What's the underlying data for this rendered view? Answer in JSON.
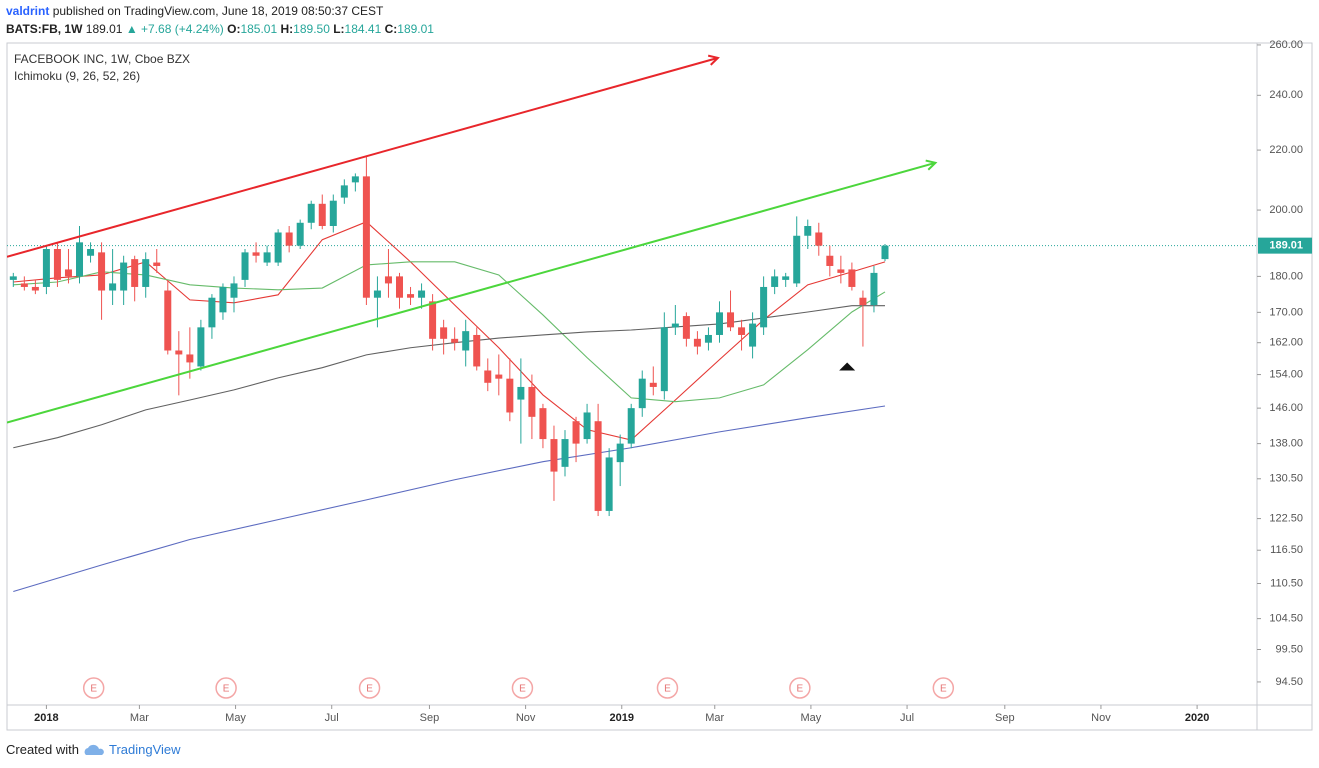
{
  "header": {
    "author": "valdrint",
    "published": "published on TradingView.com, June 18, 2019 08:50:37 CEST",
    "symbol": "BATS:FB, 1W",
    "last": "189.01",
    "change": "▲ +7.68 (+4.24%)",
    "ohlc": [
      {
        "label": "O:",
        "value": "185.01"
      },
      {
        "label": "H:",
        "value": "189.50"
      },
      {
        "label": "L:",
        "value": "184.41"
      },
      {
        "label": "C:",
        "value": "189.01"
      }
    ]
  },
  "footer": {
    "created": "Created with",
    "brand": "TradingView"
  },
  "chart_data": {
    "type": "candlestick",
    "title": "FACEBOOK INC, 1W, Cboe BZX",
    "subtitle": "Ichimoku (9, 26, 52, 26)",
    "log_scale": true,
    "up_color": "#26a69a",
    "down_color": "#ef5350",
    "xlim": [
      "2017-12-07",
      "2020-02-08"
    ],
    "xticks": [
      {
        "value": "2018-01-01",
        "label": "2018"
      },
      {
        "value": "2018-03-01",
        "label": "Mar"
      },
      {
        "value": "2018-05-01",
        "label": "May"
      },
      {
        "value": "2018-07-01",
        "label": "Jul"
      },
      {
        "value": "2018-09-01",
        "label": "Sep"
      },
      {
        "value": "2018-11-01",
        "label": "Nov"
      },
      {
        "value": "2019-01-01",
        "label": "2019"
      },
      {
        "value": "2019-03-01",
        "label": "Mar"
      },
      {
        "value": "2019-05-01",
        "label": "May"
      },
      {
        "value": "2019-07-01",
        "label": "Jul"
      },
      {
        "value": "2019-09-01",
        "label": "Sep"
      },
      {
        "value": "2019-11-01",
        "label": "Nov"
      },
      {
        "value": "2020-01-01",
        "label": "2020"
      }
    ],
    "ylim": [
      91.1,
      260.8
    ],
    "yticks": [
      {
        "value": 260,
        "label": "260.00"
      },
      {
        "value": 240,
        "label": "240.00"
      },
      {
        "value": 220,
        "label": "220.00"
      },
      {
        "value": 200,
        "label": "200.00"
      },
      {
        "value": 180,
        "label": "180.00"
      },
      {
        "value": 170,
        "label": "170.00"
      },
      {
        "value": 162,
        "label": "162.00"
      },
      {
        "value": 154,
        "label": "154.00"
      },
      {
        "value": 146,
        "label": "146.00"
      },
      {
        "value": 138,
        "label": "138.00"
      },
      {
        "value": 130.5,
        "label": "130.50"
      },
      {
        "value": 122.5,
        "label": "122.50"
      },
      {
        "value": 116.5,
        "label": "116.50"
      },
      {
        "value": 110.5,
        "label": "110.50"
      },
      {
        "value": 104.5,
        "label": "104.50"
      },
      {
        "value": 99.5,
        "label": "99.50"
      },
      {
        "value": 94.5,
        "label": "94.50"
      }
    ],
    "x": [
      "2017-12-11",
      "2017-12-18",
      "2017-12-25",
      "2018-01-01",
      "2018-01-08",
      "2018-01-15",
      "2018-01-22",
      "2018-01-29",
      "2018-02-05",
      "2018-02-12",
      "2018-02-19",
      "2018-02-26",
      "2018-03-05",
      "2018-03-12",
      "2018-03-19",
      "2018-03-26",
      "2018-04-02",
      "2018-04-09",
      "2018-04-16",
      "2018-04-23",
      "2018-04-30",
      "2018-05-07",
      "2018-05-14",
      "2018-05-21",
      "2018-05-28",
      "2018-06-04",
      "2018-06-11",
      "2018-06-18",
      "2018-06-25",
      "2018-07-02",
      "2018-07-09",
      "2018-07-16",
      "2018-07-23",
      "2018-07-30",
      "2018-08-06",
      "2018-08-13",
      "2018-08-20",
      "2018-08-27",
      "2018-09-03",
      "2018-09-10",
      "2018-09-17",
      "2018-09-24",
      "2018-10-01",
      "2018-10-08",
      "2018-10-15",
      "2018-10-22",
      "2018-10-29",
      "2018-11-05",
      "2018-11-12",
      "2018-11-19",
      "2018-11-26",
      "2018-12-03",
      "2018-12-10",
      "2018-12-17",
      "2018-12-24",
      "2018-12-31",
      "2019-01-07",
      "2019-01-14",
      "2019-01-21",
      "2019-01-28",
      "2019-02-04",
      "2019-02-11",
      "2019-02-18",
      "2019-02-25",
      "2019-03-04",
      "2019-03-11",
      "2019-03-18",
      "2019-03-25",
      "2019-04-01",
      "2019-04-08",
      "2019-04-15",
      "2019-04-22",
      "2019-04-29",
      "2019-05-06",
      "2019-05-13",
      "2019-05-20",
      "2019-05-27",
      "2019-06-03",
      "2019-06-10",
      "2019-06-17"
    ],
    "open": [
      179,
      178,
      177,
      177,
      188,
      182,
      180,
      186,
      187,
      176,
      176,
      185,
      177,
      184,
      176,
      160,
      159,
      156,
      166,
      170,
      174,
      179,
      187,
      184,
      184,
      193,
      189,
      196,
      202,
      195,
      204,
      209,
      211,
      174,
      180,
      180,
      175,
      174,
      173,
      166,
      163,
      160,
      164,
      155,
      154,
      153,
      148,
      151,
      146,
      139,
      133,
      143,
      139,
      143,
      124,
      134,
      138,
      146,
      152,
      150,
      166,
      169,
      163,
      162,
      164,
      170,
      166,
      161,
      166,
      177,
      179,
      178,
      192,
      193,
      186,
      182,
      182,
      174,
      172,
      185.01
    ],
    "high": [
      181,
      180,
      179,
      189,
      190,
      188,
      195,
      190,
      190,
      188,
      186,
      186,
      187,
      188,
      179,
      165,
      166,
      168,
      175,
      178,
      180,
      188,
      190,
      189,
      194,
      195,
      197,
      203,
      205,
      205,
      210,
      212,
      218,
      180,
      188,
      181,
      177,
      178,
      175,
      168,
      166,
      168,
      166,
      158,
      159,
      158,
      158,
      154,
      147,
      142,
      141,
      144,
      147,
      147,
      137,
      140,
      147,
      155,
      156,
      170,
      172,
      170,
      165,
      166,
      173,
      176,
      168,
      170,
      180,
      182,
      181,
      198,
      197,
      196,
      189,
      186,
      184,
      176,
      183,
      189.5
    ],
    "low": [
      177,
      176,
      175,
      175,
      177,
      178,
      178,
      184,
      168,
      172,
      172,
      173,
      174,
      181,
      159,
      149,
      153,
      155,
      163,
      168,
      170,
      177,
      184,
      183,
      183,
      187,
      188,
      194,
      194,
      193,
      202,
      206,
      172,
      166,
      174,
      171,
      172,
      171,
      160,
      159,
      160,
      156,
      155,
      150,
      149,
      143,
      138,
      139,
      137,
      126,
      131,
      134,
      138,
      123,
      123,
      129,
      137,
      144,
      149,
      148,
      164,
      161,
      159,
      160,
      162,
      165,
      160,
      158,
      164,
      175,
      177,
      177,
      188,
      186,
      180,
      178,
      176,
      161,
      170,
      184.41
    ],
    "close": [
      180,
      177,
      176,
      188,
      179,
      180,
      190,
      188,
      176,
      178,
      184,
      177,
      185,
      183,
      160,
      159,
      157,
      166,
      174,
      177,
      178,
      187,
      186,
      187,
      193,
      189,
      196,
      202,
      195,
      203,
      208,
      211,
      174,
      176,
      178,
      174,
      174,
      176,
      163,
      163,
      162,
      165,
      156,
      152,
      153,
      145,
      151,
      144,
      139,
      132,
      139,
      138,
      145,
      124,
      135,
      138,
      146,
      153,
      151,
      166,
      167,
      163,
      161,
      164,
      170,
      166,
      164,
      167,
      177,
      180,
      180,
      192,
      195,
      189,
      183,
      181,
      177,
      172,
      181,
      189.01
    ],
    "lines": [
      {
        "color": "#e53935",
        "x": [
          "2017-12-11",
          "2018-01-08",
          "2018-02-05",
          "2018-03-05",
          "2018-04-02",
          "2018-04-30",
          "2018-05-28",
          "2018-06-25",
          "2018-07-23",
          "2018-08-20",
          "2018-09-17",
          "2018-10-15",
          "2018-11-12",
          "2018-12-10",
          "2019-01-07",
          "2019-02-04",
          "2019-03-04",
          "2019-04-01",
          "2019-04-29",
          "2019-05-27",
          "2019-06-17"
        ],
        "values": [
          178.4,
          179.6,
          180.4,
          184.2,
          173.4,
          172.6,
          174.8,
          190.8,
          196.3,
          184.2,
          172.0,
          160.7,
          149.1,
          141.1,
          138.8,
          147.9,
          157.7,
          168.0,
          177.6,
          181.3,
          184.2
        ]
      },
      {
        "color": "#66bb6a",
        "x": [
          "2017-12-11",
          "2018-01-08",
          "2018-02-05",
          "2018-03-05",
          "2018-04-02",
          "2018-04-30",
          "2018-05-28",
          "2018-06-25",
          "2018-07-23",
          "2018-08-20",
          "2018-09-17",
          "2018-10-15",
          "2018-11-12",
          "2018-12-10",
          "2019-01-07",
          "2019-02-04",
          "2019-03-04",
          "2019-04-01",
          "2019-04-29",
          "2019-05-27",
          "2019-06-17"
        ],
        "values": [
          177.6,
          178.4,
          181.3,
          180.4,
          177.6,
          176.7,
          176.2,
          176.7,
          183.3,
          184.2,
          184.2,
          180.4,
          169.3,
          158.2,
          148.4,
          147.5,
          148.4,
          151.5,
          160.2,
          170.1,
          175.6
        ]
      },
      {
        "color": "#616161",
        "x": [
          "2017-12-11",
          "2018-01-08",
          "2018-02-05",
          "2018-03-05",
          "2018-04-02",
          "2018-04-30",
          "2018-05-28",
          "2018-06-25",
          "2018-07-23",
          "2018-08-20",
          "2018-09-17",
          "2018-10-15",
          "2018-11-12",
          "2018-12-10",
          "2019-01-07",
          "2019-02-04",
          "2019-03-04",
          "2019-04-01",
          "2019-04-29",
          "2019-05-27",
          "2019-06-17"
        ],
        "values": [
          137.1,
          139.3,
          142.2,
          145.6,
          147.9,
          150.3,
          153.2,
          155.7,
          158.9,
          160.7,
          162.0,
          163.2,
          164.0,
          164.8,
          165.3,
          166.1,
          166.9,
          168.5,
          170.1,
          171.8,
          171.8
        ]
      },
      {
        "color": "#5c6bc0",
        "x": [
          "2017-12-11",
          "2018-02-05",
          "2018-04-02",
          "2018-05-28",
          "2018-07-23",
          "2018-09-17",
          "2018-11-12",
          "2019-01-07",
          "2019-03-04",
          "2019-04-29",
          "2019-06-17"
        ],
        "values": [
          109.1,
          113.8,
          118.5,
          122.3,
          126.2,
          130.3,
          134.1,
          137.1,
          140.6,
          143.8,
          146.5
        ]
      }
    ],
    "trendlines": [
      {
        "color": "#e8262b",
        "x": [
          "2017-12-07",
          "2019-03-03"
        ],
        "values": [
          185.7,
          254.7
        ]
      },
      {
        "color": "#4cd63c",
        "x": [
          "2017-12-07",
          "2019-07-19"
        ],
        "values": [
          142.7,
          215.6
        ]
      }
    ],
    "marker": {
      "x": "2019-05-24",
      "value": 156,
      "color": "#111111"
    },
    "last_price": 189.01,
    "last_color": "#26a69a",
    "earnings": {
      "label": "E",
      "x": [
        "2018-01-31",
        "2018-04-25",
        "2018-07-25",
        "2018-10-30",
        "2019-01-30",
        "2019-04-24",
        "2019-07-24"
      ]
    }
  }
}
